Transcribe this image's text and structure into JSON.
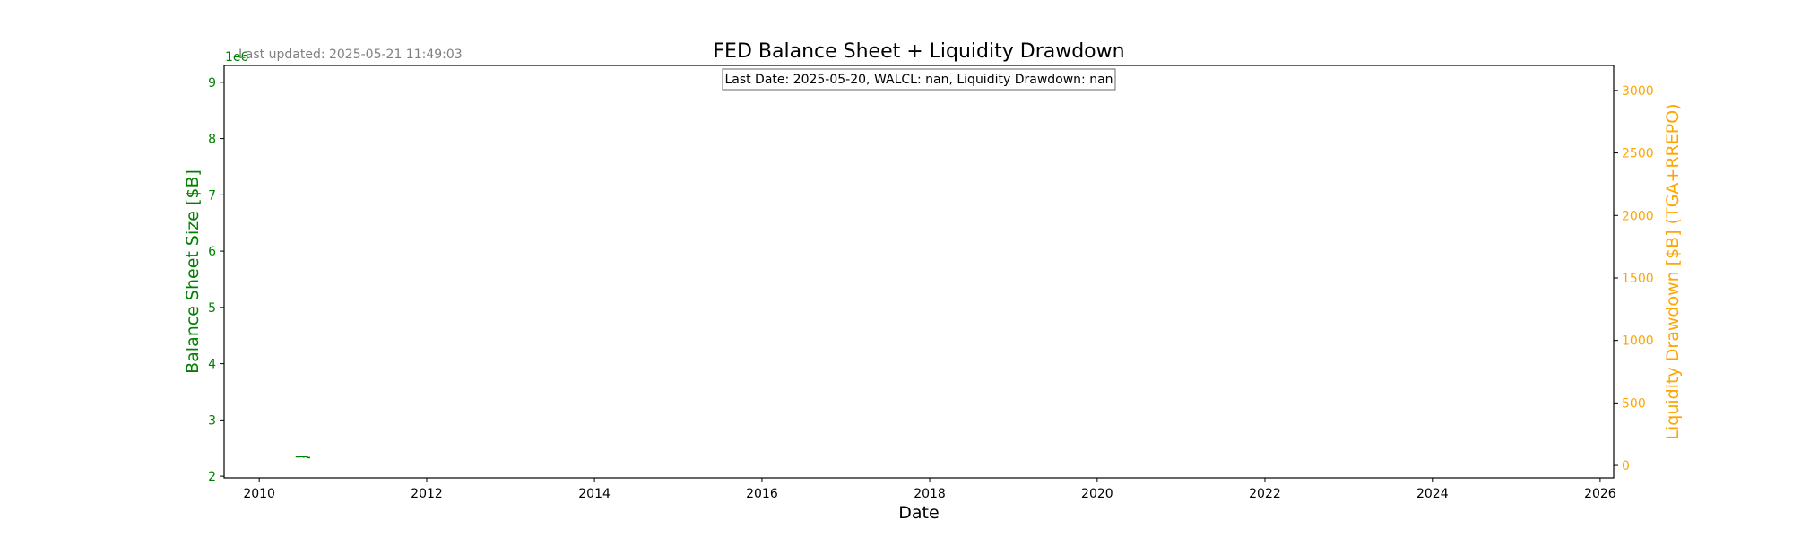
{
  "chart_data": {
    "type": "line",
    "title": "FED Balance Sheet + Liquidity Drawdown",
    "xlabel": "Date",
    "ylabel_left": "Balance Sheet Size [$B]",
    "ylabel_right": "Liquidity Drawdown [$B] (TGA+RREPO)",
    "left_offset_text": "1e6",
    "last_updated": "Last updated: 2025-05-21 11:49:03",
    "info_box": "Last Date: 2025-05-20, WALCL: nan, Liquidity Drawdown: nan",
    "xlim": [
      "2009-08-01",
      "2026-03-01"
    ],
    "x_ticks": [
      "2010",
      "2012",
      "2014",
      "2016",
      "2018",
      "2020",
      "2022",
      "2024",
      "2026"
    ],
    "ylim_left": [
      1.97,
      9.3
    ],
    "y_ticks_left": [
      "2",
      "3",
      "4",
      "5",
      "6",
      "7",
      "8",
      "9"
    ],
    "ylim_right": [
      -100,
      3200
    ],
    "y_ticks_right": [
      "0",
      "500",
      "1000",
      "1500",
      "2000",
      "2500",
      "3000"
    ],
    "grid": false,
    "colors": {
      "left_axis": "#008000",
      "right_axis": "#FFA500",
      "series": "#008000"
    },
    "series": [
      {
        "name": "WALCL",
        "axis": "left",
        "x": [
          "2010-06-09",
          "2010-06-16",
          "2010-06-23",
          "2010-06-30",
          "2010-07-07",
          "2010-07-14",
          "2010-07-21",
          "2010-07-28",
          "2010-08-04",
          "2010-08-11"
        ],
        "y": [
          2.34,
          2.35,
          2.34,
          2.35,
          2.35,
          2.34,
          2.35,
          2.34,
          2.33,
          2.33
        ]
      }
    ]
  }
}
